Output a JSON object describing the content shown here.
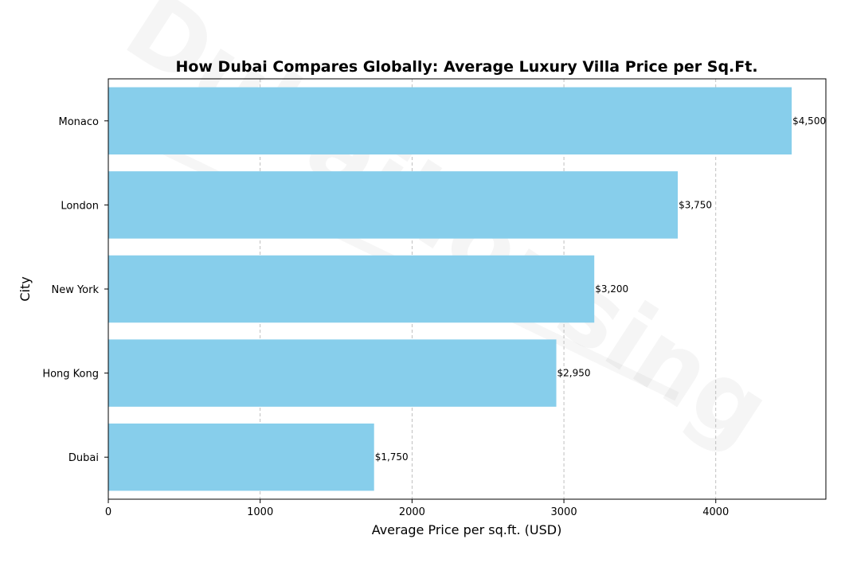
{
  "chart_data": {
    "type": "bar",
    "orientation": "horizontal",
    "title": "How Dubai Compares Globally: Average Luxury Villa Price per Sq.Ft.",
    "xlabel": "Average Price per sq.ft. (USD)",
    "ylabel": "City",
    "categories": [
      "Monaco",
      "London",
      "New York",
      "Hong Kong",
      "Dubai"
    ],
    "values": [
      4500,
      3750,
      3200,
      2950,
      1750
    ],
    "data_labels": [
      "$4,500",
      "$3,750",
      "$3,200",
      "$2,950",
      "$1,750"
    ],
    "xlim": [
      0,
      4725
    ],
    "xticks": [
      0,
      1000,
      2000,
      3000,
      4000
    ],
    "xtick_labels": [
      "0",
      "1000",
      "2000",
      "3000",
      "4000"
    ],
    "grid": "x-dashed",
    "bar_color": "#87ceeb",
    "watermark": "Dubaihousing"
  }
}
